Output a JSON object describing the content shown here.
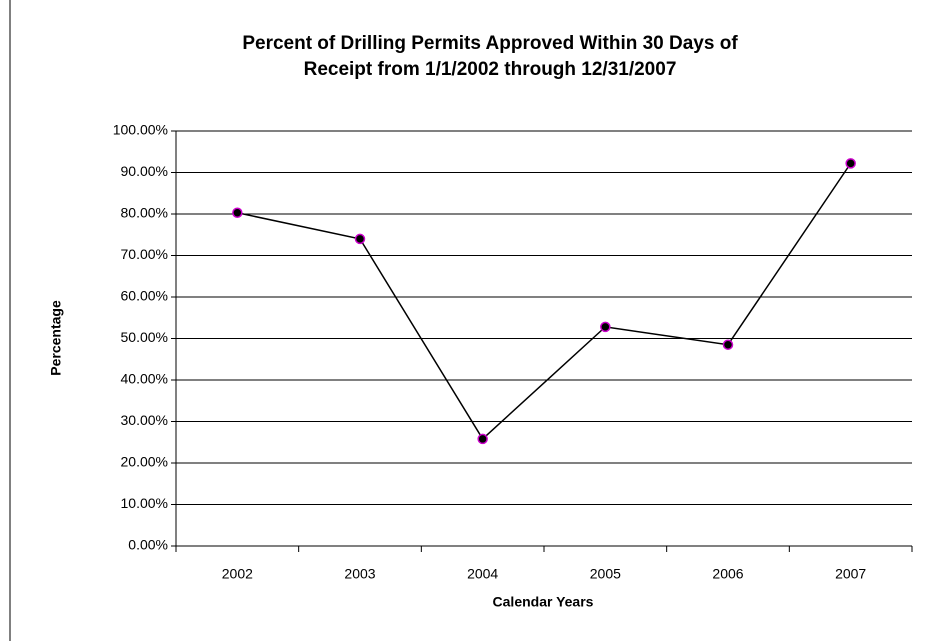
{
  "chart_data": {
    "type": "line",
    "title": [
      "Percent of Drilling Permits Approved Within 30 Days of",
      "Receipt from 1/1/2002 through 12/31/2007"
    ],
    "x_label": "Calendar Years",
    "y_label": "Percentage",
    "categories": [
      "2002",
      "2003",
      "2004",
      "2005",
      "2006",
      "2007"
    ],
    "series": [
      {
        "name": "Percentage",
        "color": "#000000",
        "marker_edge": "#cc00cc",
        "values": [
          80.3,
          74,
          25.8,
          52.8,
          48.5,
          92.2
        ]
      }
    ],
    "ylim": [
      0,
      100
    ],
    "yticks": [
      {
        "value": 0,
        "label": "0.00%"
      },
      {
        "value": 10,
        "label": "10.00%"
      },
      {
        "value": 20,
        "label": "20.00%"
      },
      {
        "value": 30,
        "label": "30.00%"
      },
      {
        "value": 40,
        "label": "40.00%"
      },
      {
        "value": 50,
        "label": "50.00%"
      },
      {
        "value": 60,
        "label": "60.00%"
      },
      {
        "value": 70,
        "label": "70.00%"
      },
      {
        "value": 80,
        "label": "80.00%"
      },
      {
        "value": 90,
        "label": "90.00%"
      },
      {
        "value": 100,
        "label": "100.00%"
      }
    ],
    "grid": true
  }
}
